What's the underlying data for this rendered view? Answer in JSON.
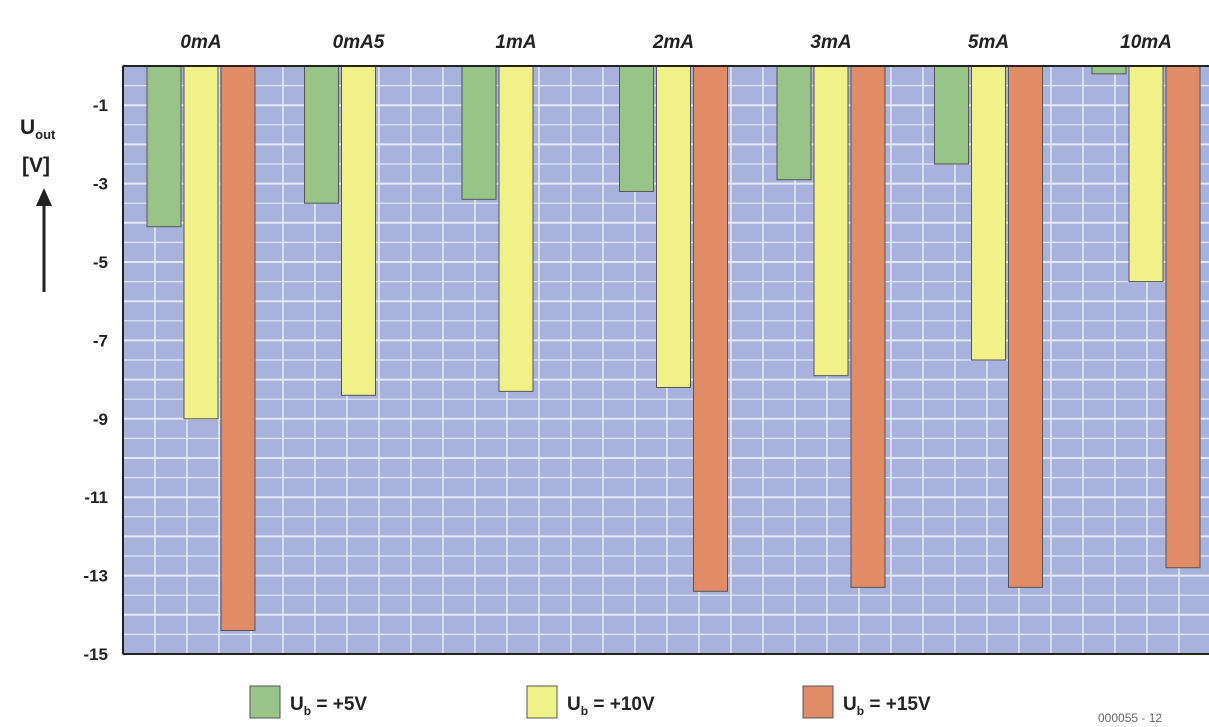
{
  "chart_data": {
    "type": "bar",
    "title": "",
    "ylabel": {
      "main": "U",
      "sub": "out",
      "unit": "[V]"
    },
    "categories": [
      "0mA",
      "0mA5",
      "1mA",
      "2mA",
      "3mA",
      "5mA",
      "10mA"
    ],
    "y_ticks": [
      "-1",
      "-3",
      "-5",
      "-7",
      "-9",
      "-11",
      "-13",
      "-15"
    ],
    "y_tick_values": [
      -1,
      -3,
      -5,
      -7,
      -9,
      -11,
      -13,
      -15
    ],
    "ylim": [
      -15,
      0
    ],
    "grid": true,
    "legend_position": "bottom",
    "series": [
      {
        "name": "Ub = +5V",
        "label_main": "U",
        "label_sub": "b",
        "label_rest": " = +5V",
        "color": "#98c487",
        "values": [
          -4.1,
          -3.5,
          -3.4,
          -3.2,
          -2.9,
          -2.5,
          -0.2
        ]
      },
      {
        "name": "Ub = +10V",
        "label_main": "U",
        "label_sub": "b",
        "label_rest": " = +10V",
        "color": "#f1f18a",
        "values": [
          -9.0,
          -8.4,
          -8.3,
          -8.2,
          -7.9,
          -7.5,
          -5.5
        ]
      },
      {
        "name": "Ub = +15V",
        "label_main": "U",
        "label_sub": "b",
        "label_rest": " = +15V",
        "color": "#e08c66",
        "values": [
          -14.4,
          null,
          null,
          -13.4,
          -13.3,
          -13.3,
          -12.8
        ]
      }
    ],
    "figure_code": "000055 - 12"
  },
  "colors": {
    "plot_background": "#a8b2dc",
    "grid": "#e3e8f7",
    "frame": "#222222"
  }
}
